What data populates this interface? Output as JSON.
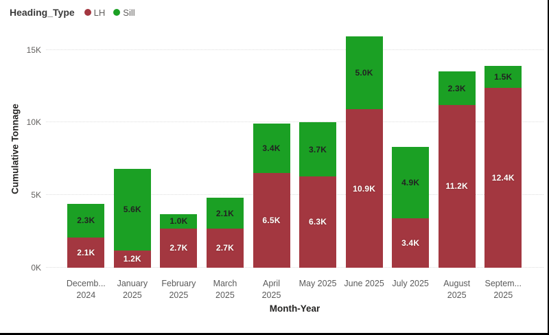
{
  "window": {
    "background": "#ffffff",
    "frame_border_color": "#000000"
  },
  "legend": {
    "title": "Heading_Type",
    "items": [
      {
        "label": "LH",
        "color": "#a33740"
      },
      {
        "label": "Sill",
        "color": "#1ba024"
      }
    ]
  },
  "chart_data": {
    "type": "bar",
    "stacked": true,
    "xlabel": "Month-Year",
    "ylabel": "Cumulative Tonnage",
    "ylim": [
      0,
      16.3
    ],
    "grid": "dotted-horizontal",
    "legend_position": "top-left",
    "yticks": [
      {
        "value": 0,
        "label": "0K"
      },
      {
        "value": 5,
        "label": "5K"
      },
      {
        "value": 10,
        "label": "10K"
      },
      {
        "value": 15,
        "label": "15K"
      }
    ],
    "categories": [
      {
        "line1": "Decemb...",
        "line2": "2024"
      },
      {
        "line1": "January",
        "line2": "2025"
      },
      {
        "line1": "February",
        "line2": "2025"
      },
      {
        "line1": "March",
        "line2": "2025"
      },
      {
        "line1": "April",
        "line2": "2025"
      },
      {
        "line1": "May 2025",
        "line2": ""
      },
      {
        "line1": "June 2025",
        "line2": ""
      },
      {
        "line1": "July 2025",
        "line2": ""
      },
      {
        "line1": "August",
        "line2": "2025"
      },
      {
        "line1": "Septem...",
        "line2": "2025"
      }
    ],
    "series": [
      {
        "name": "LH",
        "color": "#a33740",
        "label_style": "on-dark",
        "values": [
          2.1,
          1.2,
          2.7,
          2.7,
          6.5,
          6.3,
          10.9,
          3.4,
          11.2,
          12.4
        ],
        "labels": [
          "2.1K",
          "1.2K",
          "2.7K",
          "2.7K",
          "6.5K",
          "6.3K",
          "10.9K",
          "3.4K",
          "11.2K",
          "12.4K"
        ]
      },
      {
        "name": "Sill",
        "color": "#1ba024",
        "label_style": "on-light",
        "values": [
          2.3,
          5.6,
          1.0,
          2.1,
          3.4,
          3.7,
          5.0,
          4.9,
          2.3,
          1.5
        ],
        "labels": [
          "2.3K",
          "5.6K",
          "1.0K",
          "2.1K",
          "3.4K",
          "3.7K",
          "5.0K",
          "4.9K",
          "2.3K",
          "1.5K"
        ]
      }
    ]
  }
}
